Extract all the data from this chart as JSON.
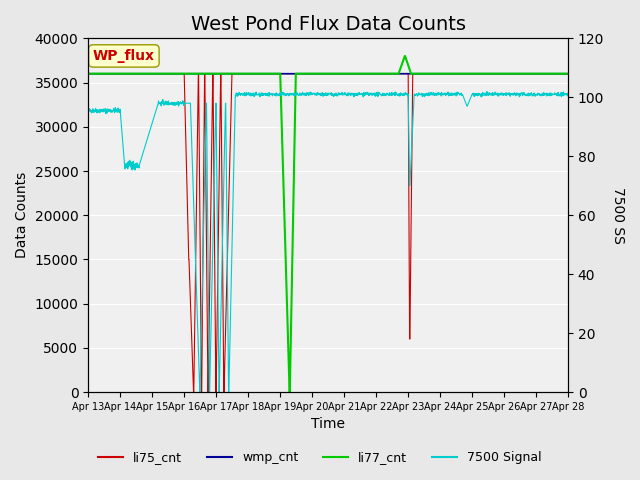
{
  "title": "West Pond Flux Data Counts",
  "xlabel": "Time",
  "ylabel_left": "Data Counts",
  "ylabel_right": "7500 SS",
  "xlim_days": [
    0,
    15
  ],
  "ylim_left": [
    0,
    40000
  ],
  "ylim_right": [
    0,
    120
  ],
  "left_yticks": [
    0,
    5000,
    10000,
    15000,
    20000,
    25000,
    30000,
    35000,
    40000
  ],
  "right_yticks": [
    0,
    20,
    40,
    60,
    80,
    100,
    120
  ],
  "xtick_labels": [
    "Apr 13",
    "Apr 14",
    "Apr 15",
    "Apr 16",
    "Apr 17",
    "Apr 18",
    "Apr 19",
    "Apr 20",
    "Apr 21",
    "Apr 22",
    "Apr 23",
    "Apr 24",
    "Apr 25",
    "Apr 26",
    "Apr 27",
    "Apr 28"
  ],
  "bg_color": "#e8e8e8",
  "plot_bg_color": "#f0f0f0",
  "legend_items": [
    "li75_cnt",
    "wmp_cnt",
    "li77_cnt",
    "7500 Signal"
  ],
  "legend_colors": [
    "#cc0000",
    "#000099",
    "#00cc00",
    "#00cccc"
  ],
  "annotation_text": "WP_flux",
  "annotation_color": "#cc0000",
  "annotation_bg": "#ffffcc",
  "title_fontsize": 14
}
